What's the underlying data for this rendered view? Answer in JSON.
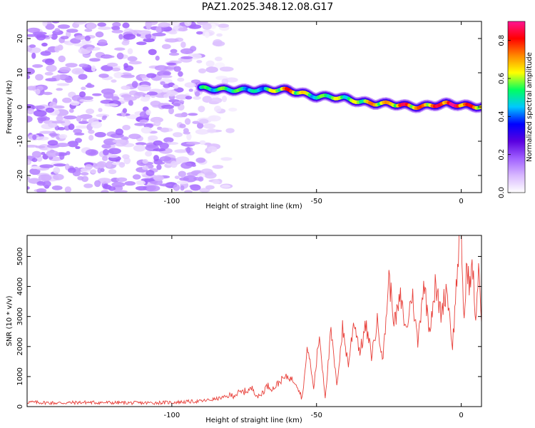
{
  "title": "PAZ1.2025.348.12.08.G17",
  "chart_data": [
    {
      "type": "heatmap",
      "title": "PAZ1.2025.348.12.08.G17",
      "xlabel": "Height of straight line (km)",
      "ylabel": "Frequency (Hz)",
      "xlim": [
        -150,
        7
      ],
      "ylim": [
        -25,
        25
      ],
      "x_ticks": [
        -100,
        -50,
        0
      ],
      "y_ticks": [
        -20,
        -10,
        0,
        10,
        20
      ],
      "colorbar": {
        "label": "Normalized spectral amplitude",
        "range": [
          0.0,
          0.9
        ],
        "ticks": [
          0.0,
          0.2,
          0.4,
          0.6,
          0.8
        ],
        "colormap": [
          "#ffffff",
          "#d8b8ff",
          "#a060ff",
          "#5a00e0",
          "#0000ff",
          "#00c8ff",
          "#00ff60",
          "#ffff00",
          "#ff8800",
          "#ff0000",
          "#ff1493"
        ]
      },
      "ridge": {
        "description_points_x": [
          -90,
          -80,
          -70,
          -60,
          -50,
          -45,
          -40,
          -35,
          -30,
          -25,
          -20,
          -15,
          -10,
          -5,
          0,
          7
        ],
        "frequency_hz": [
          5.5,
          5,
          5,
          5,
          3,
          3,
          2.5,
          1.5,
          1,
          1,
          0.5,
          0,
          0.5,
          1,
          0.5,
          0
        ],
        "amplitude": [
          0.5,
          0.55,
          0.45,
          0.75,
          0.5,
          0.6,
          0.55,
          0.6,
          0.7,
          0.65,
          0.8,
          0.7,
          0.75,
          0.85,
          0.8,
          0.7
        ]
      },
      "noise_region_x": [
        -150,
        -75
      ]
    },
    {
      "type": "line",
      "xlabel": "Height of straight line (km)",
      "ylabel": "SNR (10 * v/v)",
      "xlim": [
        -150,
        7
      ],
      "ylim": [
        0,
        5700
      ],
      "x_ticks": [
        -100,
        -50,
        0
      ],
      "y_ticks": [
        0,
        1000,
        2000,
        3000,
        4000,
        5000
      ],
      "series": [
        {
          "name": "SNR",
          "color": "#e8403a",
          "x": [
            -150,
            -140,
            -130,
            -120,
            -110,
            -100,
            -90,
            -85,
            -80,
            -75,
            -72,
            -70,
            -67,
            -65,
            -62,
            -60,
            -57,
            -55,
            -53,
            -51,
            -49,
            -47,
            -45,
            -43,
            -41,
            -39,
            -37,
            -35,
            -33,
            -31,
            -29,
            -27,
            -25,
            -23,
            -21,
            -19,
            -17,
            -15,
            -13,
            -11,
            -9,
            -7,
            -5,
            -3,
            -1,
            0,
            1,
            2,
            3,
            4,
            5,
            6,
            7
          ],
          "values": [
            150,
            120,
            140,
            130,
            120,
            140,
            180,
            250,
            350,
            500,
            600,
            300,
            700,
            600,
            900,
            1000,
            800,
            300,
            2000,
            600,
            2400,
            300,
            2500,
            700,
            2600,
            1400,
            2900,
            1800,
            2700,
            1700,
            2800,
            1600,
            4300,
            2800,
            3600,
            2500,
            3800,
            2100,
            4200,
            2600,
            4000,
            3100,
            4000,
            2000,
            5100,
            5700,
            2800,
            4800,
            4000,
            4700,
            2600,
            4900,
            2800
          ]
        }
      ]
    }
  ]
}
